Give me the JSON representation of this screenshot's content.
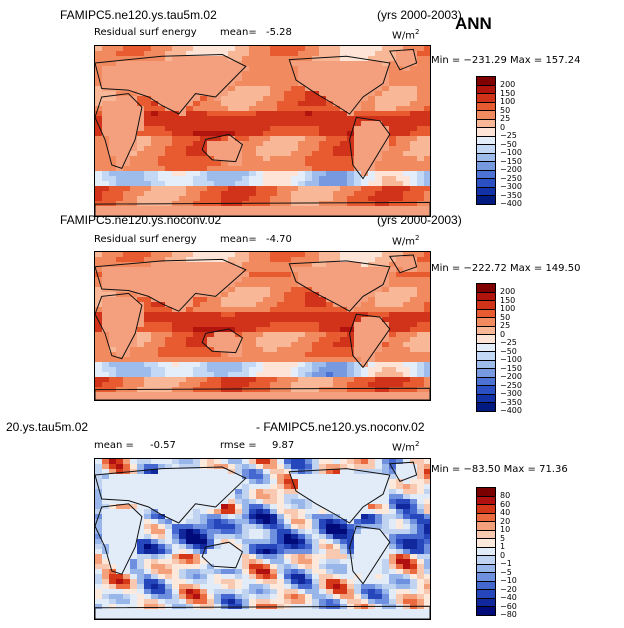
{
  "panels": [
    {
      "title": "FAMIPC5.ne120.ys.tau5m.02",
      "years": "(yrs 2000-2003)",
      "subtitle": "Residual surf energy",
      "mean_label": "mean=",
      "mean_value": "-5.28",
      "units": "W/m",
      "units_exp": "2",
      "minmax": "Min = −231.29  Max = 157.24",
      "levels": [
        "200",
        "150",
        "100",
        "50",
        "25",
        "0",
        "−25",
        "−50",
        "−100",
        "−150",
        "−200",
        "−250",
        "−300",
        "−350",
        "−400"
      ]
    },
    {
      "title": "FAMIPC5.ne120.ys.noconv.02",
      "years": "(yrs 2000-2003)",
      "subtitle": "Residual surf energy",
      "mean_label": "mean=",
      "mean_value": "-4.70",
      "units": "W/m",
      "units_exp": "2",
      "minmax": "Min = −222.72  Max = 149.50",
      "levels": [
        "200",
        "150",
        "100",
        "50",
        "25",
        "0",
        "−25",
        "−50",
        "−100",
        "−150",
        "−200",
        "−250",
        "−300",
        "−350",
        "−400"
      ]
    },
    {
      "title_left": "20.ys.tau5m.02",
      "title_right": "- FAMIPC5.ne120.ys.noconv.02",
      "mean_label": "mean =",
      "mean_value": "-0.57",
      "rmse_label": "rmse =",
      "rmse_value": "9.87",
      "units": "W/m",
      "units_exp": "2",
      "minmax": "Min = −83.50  Max =  71.36",
      "levels": [
        "80",
        "60",
        "40",
        "20",
        "10",
        "5",
        "1",
        "0",
        "−1",
        "−5",
        "−10",
        "−20",
        "−40",
        "−60",
        "−80"
      ]
    }
  ],
  "season": "ANN",
  "colors": {
    "abs_scale": [
      "#800000",
      "#b0140c",
      "#d0321a",
      "#e85a30",
      "#f28a60",
      "#f8b898",
      "#fde4d6",
      "#e4eefa",
      "#c2d8f4",
      "#9dbcec",
      "#7699e0",
      "#4c72d4",
      "#2a50c4",
      "#1432a8",
      "#001a80"
    ],
    "diff_scale": [
      "#7a0000",
      "#b01010",
      "#d43818",
      "#ec6a40",
      "#f4a07a",
      "#f9c8b0",
      "#fde8dc",
      "#e2ecf9",
      "#c0d4f2",
      "#98b6ea",
      "#6e90de",
      "#4468d0",
      "#2646bc",
      "#10289c",
      "#000a78"
    ]
  },
  "chart_data": [
    {
      "type": "heatmap",
      "title": "FAMIPC5.ne120.ys.tau5m.02",
      "subtitle": "Residual surf energy",
      "units": "W/m^2",
      "period": "(yrs 2000-2003)",
      "mean": -5.28,
      "min": -231.29,
      "max": 157.24,
      "contour_levels": [
        200,
        150,
        100,
        50,
        25,
        0,
        -25,
        -50,
        -100,
        -150,
        -200,
        -250,
        -300,
        -350,
        -400
      ]
    },
    {
      "type": "heatmap",
      "title": "FAMIPC5.ne120.ys.noconv.02",
      "subtitle": "Residual surf energy",
      "units": "W/m^2",
      "period": "(yrs 2000-2003)",
      "mean": -4.7,
      "min": -222.72,
      "max": 149.5,
      "contour_levels": [
        200,
        150,
        100,
        50,
        25,
        0,
        -25,
        -50,
        -100,
        -150,
        -200,
        -250,
        -300,
        -350,
        -400
      ]
    },
    {
      "type": "heatmap",
      "title": "20.ys.tau5m.02 - FAMIPC5.ne120.ys.noconv.02",
      "units": "W/m^2",
      "mean": -0.57,
      "rmse": 9.87,
      "min": -83.5,
      "max": 71.36,
      "contour_levels": [
        80,
        60,
        40,
        20,
        10,
        5,
        1,
        0,
        -1,
        -5,
        -10,
        -20,
        -40,
        -60,
        -80
      ]
    }
  ]
}
